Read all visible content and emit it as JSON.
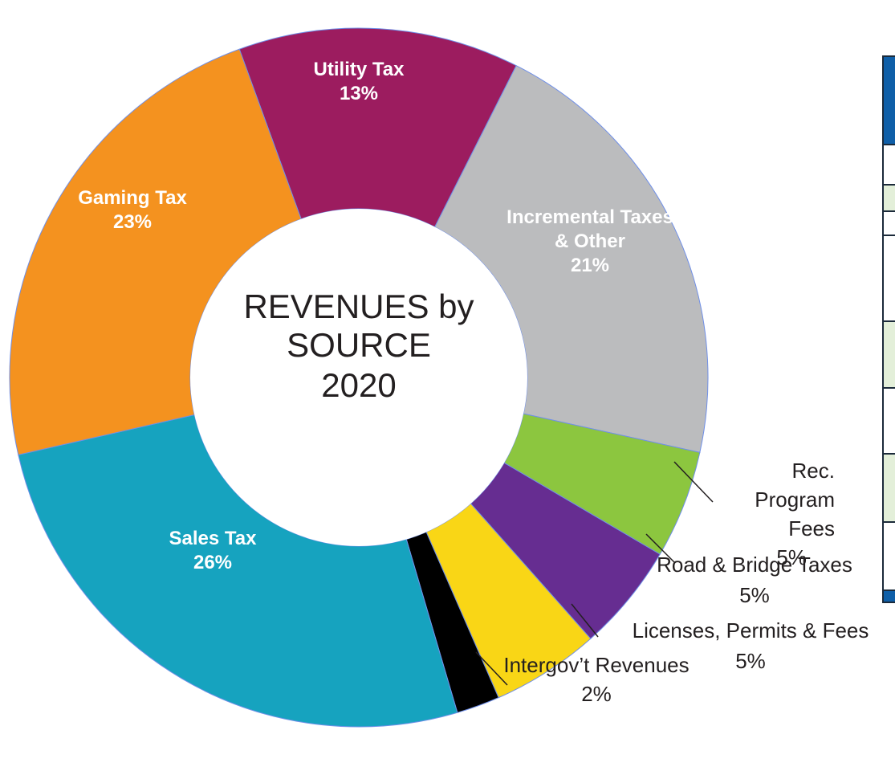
{
  "chart_data": {
    "type": "donut",
    "title": "REVENUES by SOURCE",
    "subtitle": "2020",
    "categories": [
      "Utility Tax",
      "Incremental Taxes & Other",
      "Rec. Program Fees",
      "Road & Bridge Taxes",
      "Licenses, Permits & Fees",
      "Intergov’t Revenues",
      "Sales Tax",
      "Gaming Tax"
    ],
    "values": [
      13,
      21,
      5,
      5,
      5,
      2,
      26,
      23
    ],
    "value_labels": [
      "13%",
      "21%",
      "5%",
      "5%",
      "5%",
      "2%",
      "26%",
      "23%"
    ],
    "colors": [
      "#9c1c5f",
      "#bbbcbe",
      "#8cc63f",
      "#662d91",
      "#f9d616",
      "#000000",
      "#16a3bf",
      "#f4921f"
    ]
  }
}
